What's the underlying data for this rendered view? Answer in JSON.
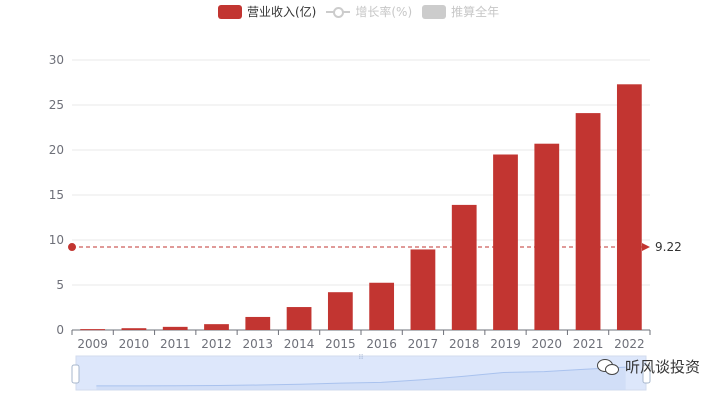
{
  "legend": {
    "revenue": "营业收入(亿)",
    "growth": "增长率(%)",
    "estimate": "推算全年"
  },
  "watermark": {
    "text": "听风谈投资",
    "icon": "wechat-icon"
  },
  "colors": {
    "bar": "#c23531",
    "grid": "#e9e9e9",
    "axis": "#6e7079",
    "inactive": "#cccccc",
    "slider_fill": "#dde7fb",
    "slider_line": "#a9c2ee"
  },
  "chart_data": {
    "type": "bar",
    "categories": [
      "2009",
      "2010",
      "2011",
      "2012",
      "2013",
      "2014",
      "2015",
      "2016",
      "2017",
      "2018",
      "2019",
      "2020",
      "2021",
      "2022"
    ],
    "series": [
      {
        "name": "营业收入(亿)",
        "values": [
          0.1,
          0.2,
          0.35,
          0.65,
          1.45,
          2.55,
          4.2,
          5.25,
          8.95,
          13.9,
          19.5,
          20.7,
          24.1,
          27.3
        ]
      }
    ],
    "ylim": [
      0,
      30
    ],
    "yticks": [
      "0",
      "5",
      "10",
      "15",
      "20",
      "25",
      "30"
    ],
    "grid": true,
    "legend_position": "top-center",
    "markline": {
      "value": 9.22,
      "label": "9.22"
    },
    "datazoom": true
  }
}
